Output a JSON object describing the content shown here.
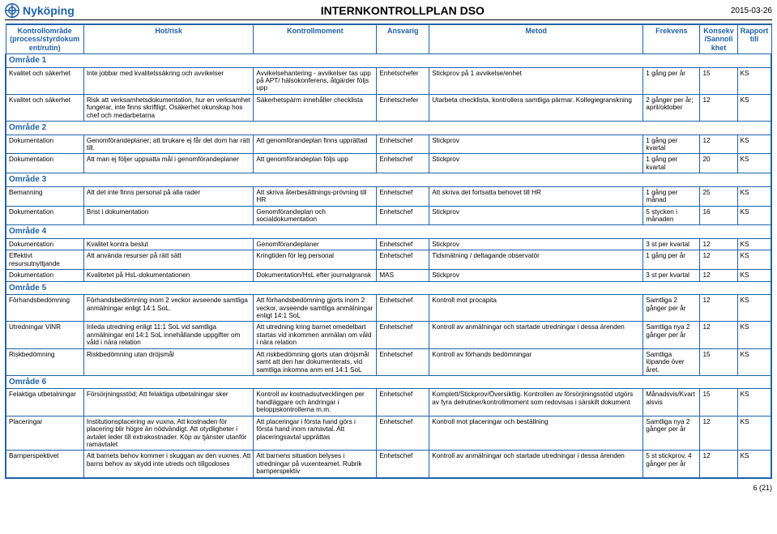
{
  "header": {
    "logo_text": "Nyköping",
    "title": "INTERNKONTROLLPLAN DSO",
    "date": "2015-03-26"
  },
  "columns": {
    "c1": "Kontrollområde (process/styrdokument/rutin)",
    "c2": "Hot/risk",
    "c3": "Kontrollmoment",
    "c4": "Ansvarig",
    "c5": "Metod",
    "c6": "Frekvens",
    "c7": "Konsekv/Sannolikhet",
    "c8": "Rapport till"
  },
  "areas": [
    {
      "title": "Område 1",
      "rows": [
        {
          "c1": "Kvalitet och säkerhet",
          "c2": "Inte jobbar med kvalitetssäkring och avvikelser",
          "c3": "Avvikelsehantering - avvikelser tas upp på APT/ hälsokonferens, åtgärder följs upp",
          "c4": "Enhetschefer",
          "c5": "Stickprov på 1 avvikelse/enhet",
          "c6": "1 gång per år",
          "c7": "15",
          "c8": "KS"
        },
        {
          "c1": "Kvalitet och säkerhet",
          "c2": "Risk att verksamhetsdokumentation, hur en verksamhet fungerar, inte finns skriftligt. Osäkerhet okunskap hos chef och medarbetarna",
          "c3": "Säkerhetspärm innehåller checklista",
          "c4": "Enhetschefer",
          "c5": "Utarbeta checklista, kontrollera samtliga pärmar. Kollegiegranskning",
          "c6": "2 gånger per år; april/oktober",
          "c7": "12",
          "c8": "KS"
        }
      ]
    },
    {
      "title": "Område 2",
      "rows": [
        {
          "c1": "Dokumentation",
          "c2": "Genomförandeplaner; att brukare ej får det dom har rätt till.",
          "c3": "Att genomförandeplan finns upprättad",
          "c4": "Enhetschef",
          "c5": "Stickprov",
          "c6": "1 gång per kvartal",
          "c7": "12",
          "c8": "KS"
        },
        {
          "c1": "Dokumentation",
          "c2": "Att man ej följer uppsatta mål i genomförandeplaner",
          "c3": "Att genomförandeplan följs upp",
          "c4": "Enhetschef",
          "c5": "Stickprov",
          "c6": "1 gång per kvartal",
          "c7": "20",
          "c8": "KS"
        }
      ]
    },
    {
      "title": "Område 3",
      "rows": [
        {
          "c1": "Bemanning",
          "c2": "Att det inte finns personal på alla rader",
          "c3": "Att skriva återbesättnings-prövning till HR",
          "c4": "Enhetschef",
          "c5": "Att skriva det fortsatta behovet till HR",
          "c6": "1 gång per månad",
          "c7": "25",
          "c8": "KS"
        },
        {
          "c1": "Dokumentation",
          "c2": "Brist i dokumentation",
          "c3": "Genomförandeplan och socialdokumentation",
          "c4": "Enhetschef",
          "c5": "Stickprov",
          "c6": "5 stycken i månaden",
          "c7": "16",
          "c8": "KS"
        }
      ]
    },
    {
      "title": "Område 4",
      "rows": [
        {
          "c1": "Dokumentation",
          "c2": "Kvalitet kontra beslut",
          "c3": "Genomförandeplaner",
          "c4": "Enhetschef",
          "c5": "Stickprov",
          "c6": "3 st per kvartal",
          "c7": "12",
          "c8": "KS"
        },
        {
          "c1": "Effektivt resursutnyttjande",
          "c2": "Att använda resurser på rätt sätt",
          "c3": "Kringtiden för leg personal",
          "c4": "Enhetschef",
          "c5": "Tidsmätning / deltagande observatör",
          "c6": "1 gång per år",
          "c7": "12",
          "c8": "KS"
        },
        {
          "c1": "Dokumentation",
          "c2": "Kvalitetet på HsL-dokumentationen",
          "c3": "Dokumentation/HsL efter journalgransk",
          "c4": "MAS",
          "c5": "Stickprov",
          "c6": "3 st per kvartal",
          "c7": "12",
          "c8": "KS"
        }
      ]
    },
    {
      "title": "Område 5",
      "rows": [
        {
          "c1": "Förhandsbedömning",
          "c2": "Förhandsbedömning inom 2 veckor avseende samtliga anmälningar enligt 14:1 SoL.",
          "c3": "Att förhandsbedömning gjorts inom 2 veckor, avseende samtliga anmälningar enligt 14:1 SoL",
          "c4": "Enhetschef",
          "c5": "Kontroll mot procapita",
          "c6": "Samtliga 2 gånger per år",
          "c7": "12",
          "c8": "KS"
        },
        {
          "c1": "Utredningar ViNR",
          "c2": "Inleda utredning enligt 11:1 SoL vid samtliga anmälningar enl 14:1 SoL innehållande uppgifter om våld i nära relation",
          "c3": "Att utredning kring barnet omedelbart startas vid inkommen anmälan om våld i nära relation",
          "c4": "Enhetschef",
          "c5": "Kontroll av anmälningar och startade utredningar i dessa ärenden",
          "c6": "Samtliga nya 2 gånger per år",
          "c7": "12",
          "c8": "KS"
        },
        {
          "c1": "Riskbedömning",
          "c2": "Riskbedömning utan dröjsmål",
          "c3": "Att riskbedömning gjorts utan dröjsmål samt att den har dokumenterats, vid samtliga inkomna anm enl 14:1 SoL",
          "c4": "Enhetschef",
          "c5": "Kontroll av förhands bedömningar",
          "c6": "Samtliga löpande över året.",
          "c7": "15",
          "c8": "KS"
        }
      ]
    },
    {
      "title": "Område 6",
      "rows": [
        {
          "c1": "Felaktiga utbetalningar",
          "c2": "Försörjningsstöd; Att felaktiga utbetalningar sker",
          "c3": "Kontroll av kostnadsutvecklingen per handläggare och ändringar i beloppskontrollerna m.m.",
          "c4": "Enhetschef",
          "c5": "Komplett/Stickprov/Översiktlig. Kontrollen av försörjiningsstöd utgörs av fyra delrutiner/kontrollmoment som redovisas i särskilt dokument",
          "c6": "Månadsvis/Kvartalsvis",
          "c7": "15",
          "c8": "KS"
        },
        {
          "c1": "Placeringar",
          "c2": "Institutionsplacering av vuxna. Att kostnaden för placering blir högre än nödvändigt. Att otydligheter i avtalet leder till extrakostnader. Köp av tjänster utanför ramavtalet",
          "c3": "Att placeringar i första hand görs i första hand inom ramavtal. Att placeringsavtal upprättas",
          "c4": "Enhetschef",
          "c5": "Kontroll mot placeringar och beställning",
          "c6": "Samtliga nya 2 gånger per år",
          "c7": "12",
          "c8": "KS"
        },
        {
          "c1": "Barnperspektivet",
          "c2": "Att barnets behov kommer i skuggan av den vuxnes. Att barns behov av skydd inte utreds och tillgodoses",
          "c3": "Att barnens situation belyses i utredningar på vuxenteamet. Rubrik barnperspektiv",
          "c4": "Enhetschef",
          "c5": "Kontroll av anmälningar och startade utredningar i dessa ärenden",
          "c6": "5 st stickprov, 4 gånger per år",
          "c7": "12",
          "c8": "KS"
        }
      ]
    }
  ],
  "footer": "6 (21)"
}
